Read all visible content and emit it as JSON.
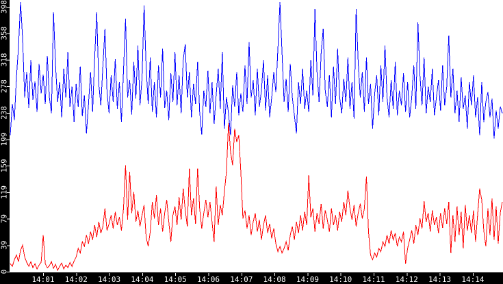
{
  "chart_data": {
    "type": "line",
    "title": "",
    "grid": false,
    "legend": "none",
    "plot_background": "#ffffff",
    "axis_band_color": "#000000",
    "tick_text_color": "#ffffff",
    "y_axis": {
      "min": 0,
      "max": 409,
      "tick_labels": [
        "0",
        "39",
        "79",
        "119",
        "159",
        "199",
        "238",
        "278",
        "318",
        "358",
        "398"
      ],
      "tick_values": [
        0,
        39.8,
        79.6,
        119.4,
        159.2,
        199,
        238.8,
        278.6,
        318.4,
        358.2,
        398
      ]
    },
    "x_axis": {
      "tick_labels": [
        "14:01",
        "14:02",
        "14:03",
        "14:04",
        "14:05",
        "14:06",
        "14:07",
        "14:08",
        "14:09",
        "14:10",
        "14:11",
        "14:12",
        "14:13",
        "14:14"
      ],
      "tick_minutes": [
        1,
        2,
        3,
        4,
        5,
        6,
        7,
        8,
        9,
        10,
        11,
        12,
        13,
        14
      ],
      "range_minutes_after_1400": [
        0,
        14.9
      ]
    },
    "series": [
      {
        "name": "upper-blue",
        "color": "#0000ff",
        "values": [
          205,
          252,
          228,
          292,
          338,
          405,
          350,
          262,
          300,
          246,
          318,
          258,
          286,
          240,
          312,
          268,
          296,
          252,
          324,
          262,
          238,
          390,
          310,
          255,
          285,
          232,
          305,
          262,
          330,
          248,
          278,
          225,
          282,
          248,
          308,
          234,
          265,
          208,
          252,
          300,
          240,
          322,
          390,
          282,
          250,
          310,
          365,
          270,
          238,
          295,
          255,
          320,
          245,
          285,
          225,
          302,
          380,
          262,
          288,
          236,
          315,
          260,
          340,
          250,
          290,
          400,
          308,
          252,
          322,
          240,
          285,
          232,
          310,
          262,
          335,
          246,
          272,
          228,
          298,
          255,
          330,
          250,
          295,
          238,
          318,
          342,
          262,
          300,
          232,
          282,
          252,
          315,
          240,
          206,
          272,
          248,
          302,
          238,
          285,
          222,
          265,
          305,
          245,
          330,
          215,
          262,
          238,
          205,
          280,
          248,
          300,
          235,
          268,
          240,
          310,
          252,
          345,
          262,
          288,
          235,
          305,
          248,
          272,
          318,
          242,
          295,
          232,
          262,
          300,
          270,
          335,
          405,
          330,
          255,
          290,
          240,
          312,
          262,
          235,
          208,
          285,
          252,
          305,
          245,
          272,
          240,
          318,
          265,
          395,
          300,
          255,
          328,
          365,
          272,
          248,
          295,
          232,
          308,
          252,
          335,
          262,
          238,
          290,
          255,
          322,
          245,
          285,
          230,
          395,
          315,
          262,
          300,
          240,
          322,
          252,
          282,
          215,
          268,
          295,
          235,
          310,
          255,
          340,
          262,
          232,
          288,
          245,
          315,
          235,
          272,
          250,
          298,
          240,
          285,
          232,
          262,
          310,
          245,
          375,
          295,
          250,
          322,
          238,
          278,
          255,
          305,
          235,
          262,
          288,
          242,
          310,
          250,
          278,
          355,
          262,
          305,
          238,
          272,
          225,
          292,
          245,
          265,
          215,
          285,
          250,
          295,
          232,
          262,
          205,
          285,
          225,
          255,
          270,
          232,
          260,
          200,
          242,
          215,
          248,
          238
        ]
      },
      {
        "name": "lower-red",
        "color": "#ff0000",
        "values": [
          12,
          8,
          18,
          25,
          15,
          32,
          40,
          22,
          14,
          8,
          15,
          6,
          12,
          4,
          10,
          14,
          55,
          12,
          6,
          9,
          15,
          5,
          11,
          2,
          8,
          13,
          4,
          10,
          6,
          14,
          8,
          16,
          22,
          35,
          28,
          45,
          38,
          55,
          42,
          60,
          48,
          70,
          52,
          75,
          58,
          68,
          95,
          62,
          72,
          85,
          65,
          90,
          70,
          82,
          62,
          95,
          160,
          78,
          150,
          88,
          120,
          75,
          92,
          68,
          85,
          100,
          52,
          38,
          60,
          105,
          80,
          115,
          70,
          95,
          60,
          88,
          108,
          75,
          45,
          85,
          98,
          70,
          112,
          78,
          125,
          92,
          68,
          155,
          85,
          110,
          72,
          155,
          95,
          65,
          88,
          108,
          82,
          105,
          75,
          45,
          128,
          70,
          100,
          85,
          120,
          150,
          223,
          180,
          160,
          215,
          195,
          205,
          150,
          80,
          92,
          65,
          85,
          55,
          75,
          88,
          60,
          78,
          48,
          70,
          85,
          58,
          72,
          50,
          65,
          42,
          30,
          38,
          28,
          35,
          45,
          32,
          55,
          68,
          48,
          75,
          58,
          85,
          62,
          90,
          70,
          145,
          82,
          95,
          60,
          88,
          72,
          102,
          65,
          92,
          78,
          60,
          95,
          70,
          85,
          62,
          90,
          75,
          105,
          85,
          122,
          95,
          78,
          100,
          68,
          88,
          102,
          80,
          95,
          143,
          60,
          25,
          18,
          28,
          22,
          35,
          30,
          45,
          38,
          55,
          42,
          62,
          48,
          58,
          38,
          52,
          45,
          60,
          12,
          35,
          48,
          62,
          42,
          70,
          55,
          80,
          65,
          106,
          75,
          88,
          60,
          92,
          70,
          82,
          58,
          88,
          66,
          95,
          72,
          105,
          28,
          85,
          45,
          98,
          55,
          90,
          35,
          100,
          62,
          85,
          58,
          92,
          45,
          85,
          125,
          108,
          62,
          38,
          95,
          55,
          110,
          48,
          98,
          42,
          88,
          105
        ]
      }
    ]
  }
}
